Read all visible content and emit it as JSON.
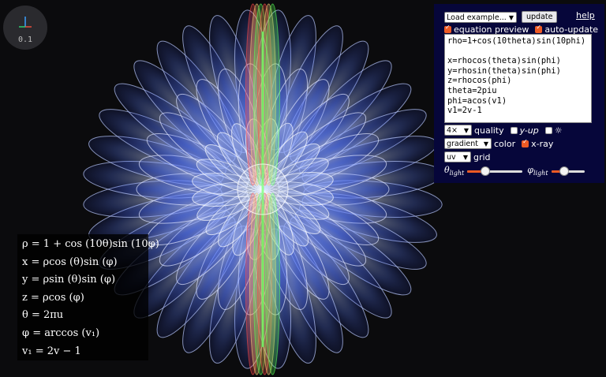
{
  "gizmo": {
    "zoom": "0.1",
    "axis_colors": {
      "x": "#e74c3c",
      "y": "#2ecc71",
      "z": "#3aa0ff"
    }
  },
  "panel": {
    "load_example": "Load example...",
    "update_label": "update",
    "help_label": "help",
    "equation_preview": {
      "label": "equation preview",
      "checked": true
    },
    "auto_update": {
      "label": "auto-update",
      "checked": true
    },
    "code": "rho=1+cos(10theta)sin(10phi)\n\nx=rhocos(theta)sin(phi)\ny=rhosin(theta)sin(phi)\nz=rhocos(phi)\ntheta=2piu\nphi=acos(v1)\nv1=2v-1",
    "quality_value": "4×",
    "quality_label": "quality",
    "y_up": {
      "label": "y-up",
      "checked": false
    },
    "sun": {
      "label": "☼",
      "checked": false
    },
    "color_value": "gradient",
    "color_label": "color",
    "xray": {
      "label": "x-ray",
      "checked": true
    },
    "grid_value": "uv",
    "grid_label": "grid",
    "theta_light": {
      "symbol": "θ",
      "sub": "light",
      "level": 0.33
    },
    "phi_light": {
      "symbol": "φ",
      "sub": "light",
      "level": 0.4
    },
    "accent": "#ee5a24",
    "background": "#06063a"
  },
  "equations": [
    "ρ = 1 + cos (10θ)sin (10φ)",
    "x = ρcos (θ)sin (φ)",
    "y = ρsin (θ)sin (φ)",
    "z = ρcos (φ)",
    "θ = 2πu",
    "φ = arccos (v₁)",
    "v₁ = 2v − 1"
  ],
  "surface": {
    "petals": 10,
    "palette": [
      "#3a5cff",
      "#9ab4ff",
      "#ff5050",
      "#50ff50",
      "#ffffff"
    ]
  }
}
